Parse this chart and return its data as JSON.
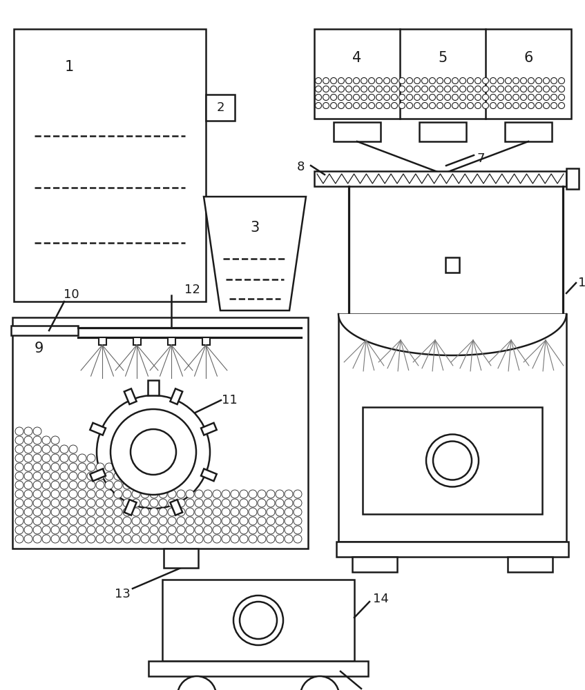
{
  "bg_color": "#ffffff",
  "line_color": "#1a1a1a",
  "lw": 1.8,
  "label_fontsize": 13,
  "fig_width": 8.47,
  "fig_height": 10.0
}
